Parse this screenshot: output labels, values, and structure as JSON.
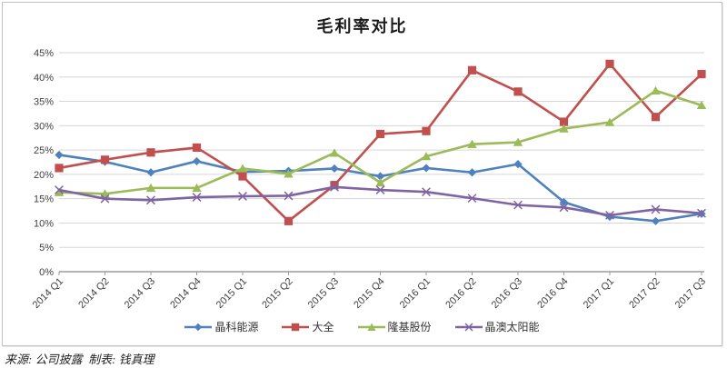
{
  "page": {
    "footer": "来源: 公司披露  制表: 钱真理"
  },
  "chart_data": {
    "type": "line",
    "title": "毛利率对比",
    "xlabel": "",
    "ylabel": "",
    "ylim": [
      0,
      45
    ],
    "y_tick_step": 5,
    "y_tick_labels": [
      "0%",
      "5%",
      "10%",
      "15%",
      "20%",
      "25%",
      "30%",
      "35%",
      "40%",
      "45%"
    ],
    "grid": "horizontal",
    "legend_position": "bottom",
    "x_label_rotation": -45,
    "categories": [
      "2014 Q1",
      "2014 Q2",
      "2014 Q3",
      "2014 Q4",
      "2015 Q1",
      "2015 Q2",
      "2015 Q3",
      "2015 Q4",
      "2016 Q1",
      "2016 Q2",
      "2016 Q3",
      "2016 Q4",
      "2017 Q1",
      "2017 Q2",
      "2017 Q3"
    ],
    "series": [
      {
        "name": "晶科能源",
        "color": "#4F81BD",
        "marker": "diamond",
        "values": [
          24.0,
          22.6,
          20.4,
          22.7,
          20.5,
          20.7,
          21.2,
          19.6,
          21.3,
          20.4,
          22.1,
          14.3,
          11.3,
          10.4,
          11.9
        ]
      },
      {
        "name": "大全",
        "color": "#C0504D",
        "marker": "square",
        "values": [
          21.3,
          23.0,
          24.5,
          25.5,
          19.6,
          10.4,
          17.8,
          28.3,
          28.9,
          41.4,
          37.0,
          30.8,
          42.7,
          31.8,
          40.6
        ]
      },
      {
        "name": "隆基股份",
        "color": "#9BBB59",
        "marker": "triangle",
        "values": [
          16.3,
          16.0,
          17.2,
          17.2,
          21.2,
          20.1,
          24.4,
          18.3,
          23.7,
          26.2,
          26.6,
          29.4,
          30.7,
          37.2,
          34.2
        ]
      },
      {
        "name": "晶澳太阳能",
        "color": "#8064A2",
        "marker": "x",
        "values": [
          16.8,
          15.0,
          14.7,
          15.3,
          15.5,
          15.6,
          17.4,
          16.8,
          16.4,
          15.1,
          13.7,
          13.2,
          11.6,
          12.8,
          12.0
        ]
      }
    ],
    "style": {
      "gridline_color": "#d6d6d6",
      "axis_line_color": "#9b9b9b",
      "tick_label_color": "#3f3f3f",
      "title_color": "#1a1a1a"
    }
  }
}
